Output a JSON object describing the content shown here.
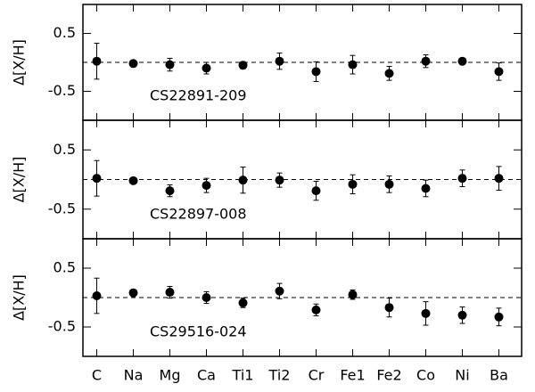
{
  "chart_data": [
    {
      "type": "scatter",
      "ylabel": "Δ[X/H]",
      "annotation": "CS22891-209",
      "values": [
        0.02,
        -0.02,
        -0.04,
        -0.1,
        -0.05,
        0.02,
        -0.16,
        -0.04,
        -0.19,
        0.02,
        0.02,
        -0.16
      ],
      "errors": [
        0.31,
        0.03,
        0.11,
        0.1,
        0.06,
        0.14,
        0.17,
        0.16,
        0.12,
        0.11,
        0.02,
        0.15
      ],
      "color": "#000000",
      "ylim": [
        -1,
        1
      ],
      "yticks": [
        -0.5,
        0.5
      ],
      "reference_line": 0
    },
    {
      "type": "scatter",
      "ylabel": "Δ[X/H]",
      "annotation": "CS22897-008",
      "values": [
        0.02,
        -0.02,
        -0.19,
        -0.1,
        -0.01,
        -0.01,
        -0.19,
        -0.08,
        -0.08,
        -0.15,
        0.02,
        0.02
      ],
      "errors": [
        0.3,
        0.03,
        0.1,
        0.12,
        0.22,
        0.12,
        0.16,
        0.16,
        0.14,
        0.14,
        0.14,
        0.2
      ],
      "color": "#000000",
      "ylim": [
        -1,
        1
      ],
      "yticks": [
        -0.5,
        0.5
      ],
      "reference_line": 0
    },
    {
      "type": "scatter",
      "ylabel": "Δ[X/H]",
      "annotation": "CS29516-024",
      "categories": [
        "C",
        "Na",
        "Mg",
        "Ca",
        "Ti1",
        "Ti2",
        "Cr",
        "Fe1",
        "Fe2",
        "Co",
        "Ni",
        "Ba"
      ],
      "values": [
        0.03,
        0.08,
        0.09,
        0,
        -0.09,
        0.11,
        -0.21,
        0.05,
        -0.17,
        -0.27,
        -0.3,
        -0.33
      ],
      "errors": [
        0.3,
        0.03,
        0.1,
        0.1,
        0.08,
        0.13,
        0.1,
        0.08,
        0.16,
        0.2,
        0.14,
        0.15
      ],
      "color": "#000000",
      "ylim": [
        -1,
        1
      ],
      "yticks": [
        -0.5,
        0.5
      ],
      "reference_line": 0
    }
  ]
}
